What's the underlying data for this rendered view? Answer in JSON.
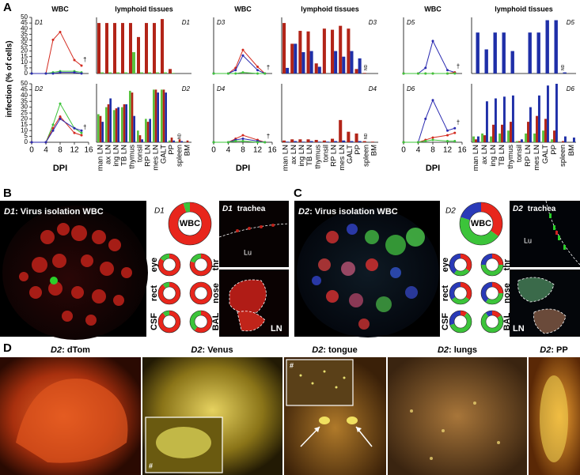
{
  "panel_labels": [
    "A",
    "B",
    "C",
    "D"
  ],
  "y_axis_label": "infection (% of cells)",
  "x_axis_label": "DPI",
  "chart_data": [
    {
      "type": "line",
      "title": "WBC",
      "label": "D1",
      "annotation": "†",
      "x": [
        0,
        4,
        6,
        8,
        12,
        14
      ],
      "xlim": [
        0,
        16
      ],
      "ylim": [
        0,
        50
      ],
      "yticks": [
        0,
        5,
        10,
        15,
        20,
        25,
        30,
        35,
        40,
        45,
        50
      ],
      "series": [
        {
          "color": "#d42a1f",
          "values": [
            0,
            0,
            30,
            37,
            12,
            7
          ]
        },
        {
          "color": "#3dc43a",
          "values": [
            0,
            0,
            1,
            2,
            2,
            1
          ]
        },
        {
          "color": "#2a2ab0",
          "values": [
            0,
            0,
            0,
            1,
            1,
            0
          ]
        }
      ]
    },
    {
      "type": "bar",
      "title": "lymphoid tissues",
      "label": "D1",
      "ylim": [
        0,
        100
      ],
      "series": [
        {
          "color": "#b22418",
          "values": [
            90,
            90,
            90,
            90,
            90,
            65,
            90,
            90,
            97,
            8,
            0,
            0
          ]
        },
        {
          "color": "#5ac23e",
          "values": [
            2,
            2,
            2,
            2,
            38,
            2,
            2,
            2,
            2,
            1,
            0,
            0
          ]
        }
      ]
    },
    {
      "type": "line",
      "title": "WBC",
      "label": "D3",
      "annotation": "†",
      "x": [
        0,
        4,
        6,
        8,
        12,
        14
      ],
      "xlim": [
        0,
        16
      ],
      "ylim": [
        0,
        50
      ],
      "series": [
        {
          "color": "#d42a1f",
          "values": [
            0,
            0,
            5,
            21,
            6,
            0
          ]
        },
        {
          "color": "#2a2ab0",
          "values": [
            0,
            0,
            3,
            16,
            3,
            0
          ]
        },
        {
          "color": "#3dc43a",
          "values": [
            0,
            0,
            0,
            1,
            0,
            0
          ]
        }
      ]
    },
    {
      "type": "bar",
      "title": "lymphoid tissues",
      "label": "D3",
      "note": "ND",
      "ylim": [
        0,
        100
      ],
      "series": [
        {
          "color": "#b22418",
          "values": [
            90,
            53,
            76,
            75,
            18,
            80,
            78,
            85,
            80,
            8,
            1,
            0
          ]
        },
        {
          "color": "#1f2fa8",
          "values": [
            10,
            53,
            38,
            40,
            12,
            0,
            40,
            30,
            40,
            27,
            0,
            0
          ]
        }
      ]
    },
    {
      "type": "line",
      "title": "WBC",
      "label": "D5",
      "annotation": "†",
      "x": [
        0,
        4,
        6,
        8,
        12,
        14
      ],
      "xlim": [
        0,
        16
      ],
      "ylim": [
        0,
        50
      ],
      "series": [
        {
          "color": "#2a2ab0",
          "values": [
            0,
            0,
            5,
            29,
            3,
            1
          ]
        },
        {
          "color": "#d42a1f",
          "values": [
            0,
            0,
            0,
            0,
            0,
            1
          ]
        },
        {
          "color": "#3dc43a",
          "values": [
            0,
            0,
            0,
            0,
            0,
            0
          ]
        }
      ]
    },
    {
      "type": "bar",
      "title": "lymphoid tissues",
      "label": "D5",
      "note": "ND",
      "ylim": [
        0,
        100
      ],
      "series": [
        {
          "color": "#b22418",
          "values": [
            0,
            0,
            0,
            0,
            0,
            0,
            0,
            0,
            0,
            0,
            0,
            0
          ]
        },
        {
          "color": "#1f2fa8",
          "values": [
            73,
            43,
            73,
            73,
            40,
            0,
            73,
            73,
            95,
            95,
            2,
            0
          ]
        }
      ]
    },
    {
      "type": "line",
      "label": "D2",
      "annotation": "†",
      "x": [
        0,
        4,
        6,
        8,
        12,
        14
      ],
      "xlim": [
        0,
        16
      ],
      "ylim": [
        0,
        50
      ],
      "xticks": [
        0,
        4,
        8,
        12,
        16
      ],
      "yticks": [
        0,
        5,
        10,
        15,
        20,
        25,
        30,
        35,
        40,
        45,
        50
      ],
      "series": [
        {
          "color": "#3dc43a",
          "values": [
            0,
            0,
            15,
            33,
            12,
            8
          ]
        },
        {
          "color": "#d42a1f",
          "values": [
            0,
            0,
            12,
            22,
            8,
            6
          ]
        },
        {
          "color": "#2a2ab0",
          "values": [
            0,
            0,
            10,
            20,
            12,
            10
          ]
        }
      ]
    },
    {
      "type": "bar",
      "label": "D2",
      "note": "ND",
      "ylim": [
        0,
        100
      ],
      "categories": [
        "man LN",
        "ax LN",
        "ing LN",
        "TB LN",
        "thymus",
        "tonsil",
        "RP LN",
        "mes LN",
        "GALT",
        "PP",
        "spleen",
        "BM"
      ],
      "series": [
        {
          "color": "#5ac23e",
          "values": [
            48,
            60,
            55,
            60,
            88,
            20,
            40,
            90,
            90,
            3,
            1,
            0
          ]
        },
        {
          "color": "#b22418",
          "values": [
            45,
            65,
            58,
            65,
            85,
            12,
            35,
            90,
            90,
            8,
            5,
            3
          ]
        },
        {
          "color": "#1f2fa8",
          "values": [
            35,
            75,
            60,
            65,
            45,
            5,
            40,
            85,
            85,
            3,
            2,
            0
          ]
        }
      ]
    },
    {
      "type": "line",
      "label": "D4",
      "annotation": "†",
      "x": [
        0,
        4,
        6,
        8,
        12,
        14
      ],
      "xlim": [
        0,
        16
      ],
      "ylim": [
        0,
        50
      ],
      "xticks": [
        0,
        4,
        8,
        12,
        16
      ],
      "series": [
        {
          "color": "#d42a1f",
          "values": [
            0,
            0,
            3,
            6,
            2,
            0
          ]
        },
        {
          "color": "#2a2ab0",
          "values": [
            0,
            0,
            2,
            3,
            1,
            0
          ]
        },
        {
          "color": "#3dc43a",
          "values": [
            0,
            0,
            1,
            1,
            0,
            0
          ]
        }
      ]
    },
    {
      "type": "bar",
      "label": "D4",
      "note": "ND",
      "ylim": [
        0,
        100
      ],
      "categories": [
        "man LN",
        "ax LN",
        "ing LN",
        "TB LN",
        "thymus",
        "tonsil",
        "RP LN",
        "mes LN",
        "GALT",
        "PP",
        "spleen",
        "BM"
      ],
      "series": [
        {
          "color": "#b22418",
          "values": [
            3,
            5,
            5,
            5,
            4,
            3,
            6,
            38,
            18,
            15,
            2,
            1
          ]
        },
        {
          "color": "#1f2fa8",
          "values": [
            1,
            2,
            1,
            2,
            1,
            1,
            2,
            3,
            2,
            2,
            0,
            0
          ]
        }
      ]
    },
    {
      "type": "line",
      "label": "D6",
      "annotation": "†",
      "x": [
        0,
        4,
        6,
        8,
        12,
        14
      ],
      "xlim": [
        0,
        16
      ],
      "ylim": [
        0,
        50
      ],
      "xticks": [
        0,
        4,
        8,
        12,
        16
      ],
      "series": [
        {
          "color": "#2a2ab0",
          "values": [
            0,
            0,
            20,
            36,
            10,
            12
          ]
        },
        {
          "color": "#d42a1f",
          "values": [
            0,
            0,
            2,
            4,
            6,
            8
          ]
        },
        {
          "color": "#3dc43a",
          "values": [
            0,
            0,
            1,
            2,
            1,
            1
          ]
        }
      ]
    },
    {
      "type": "bar",
      "label": "D6",
      "ylim": [
        0,
        100
      ],
      "categories": [
        "man LN",
        "ax LN",
        "ing LN",
        "TB LN",
        "thymus",
        "tonsil",
        "RP LN",
        "mes LN",
        "GALT",
        "PP",
        "spleen",
        "BM"
      ],
      "series": [
        {
          "color": "#5ac23e",
          "values": [
            10,
            15,
            10,
            15,
            20,
            2,
            15,
            15,
            20,
            5,
            0,
            0
          ]
        },
        {
          "color": "#b22418",
          "values": [
            5,
            12,
            30,
            30,
            35,
            2,
            35,
            45,
            40,
            20,
            2,
            0
          ]
        },
        {
          "color": "#1f2fa8",
          "values": [
            10,
            70,
            75,
            78,
            80,
            5,
            60,
            80,
            97,
            100,
            10,
            8
          ]
        }
      ]
    },
    {
      "type": "pie",
      "title": "WBC",
      "label": "D1",
      "values": [
        95,
        5,
        0
      ],
      "colors": [
        "#e8261c",
        "#3cc43a",
        "#2a3ab8"
      ]
    },
    {
      "type": "pie",
      "title": "eye",
      "values": [
        85,
        15,
        0
      ],
      "colors": [
        "#e8261c",
        "#3cc43a",
        "#2a3ab8"
      ]
    },
    {
      "type": "pie",
      "title": "thr",
      "values": [
        80,
        20,
        0
      ],
      "colors": [
        "#e8261c",
        "#3cc43a",
        "#2a3ab8"
      ]
    },
    {
      "type": "pie",
      "title": "rect",
      "values": [
        90,
        10,
        0
      ],
      "colors": [
        "#e8261c",
        "#3cc43a",
        "#2a3ab8"
      ]
    },
    {
      "type": "pie",
      "title": "nose",
      "values": [
        100,
        0,
        0
      ],
      "colors": [
        "#e8261c",
        "#3cc43a",
        "#2a3ab8"
      ]
    },
    {
      "type": "pie",
      "title": "CSF",
      "values": [
        90,
        10,
        0
      ],
      "colors": [
        "#e8261c",
        "#3cc43a",
        "#2a3ab8"
      ]
    },
    {
      "type": "pie",
      "title": "BAL",
      "values": [
        60,
        40,
        0
      ],
      "colors": [
        "#e8261c",
        "#3cc43a",
        "#2a3ab8"
      ]
    },
    {
      "type": "pie",
      "title": "WBC",
      "label": "D2",
      "values": [
        35,
        45,
        20
      ],
      "colors": [
        "#e8261c",
        "#3cc43a",
        "#2a3ab8"
      ]
    },
    {
      "type": "pie",
      "title": "eye",
      "values": [
        35,
        25,
        40
      ],
      "colors": [
        "#e8261c",
        "#3cc43a",
        "#2a3ab8"
      ]
    },
    {
      "type": "pie",
      "title": "thr",
      "values": [
        25,
        50,
        25
      ],
      "colors": [
        "#e8261c",
        "#3cc43a",
        "#2a3ab8"
      ]
    },
    {
      "type": "pie",
      "title": "rect",
      "values": [
        35,
        30,
        35
      ],
      "colors": [
        "#e8261c",
        "#3cc43a",
        "#2a3ab8"
      ]
    },
    {
      "type": "pie",
      "title": "nose",
      "values": [
        25,
        35,
        40
      ],
      "colors": [
        "#e8261c",
        "#3cc43a",
        "#2a3ab8"
      ]
    },
    {
      "type": "pie",
      "title": "CSF",
      "values": [
        10,
        60,
        30
      ],
      "colors": [
        "#e8261c",
        "#3cc43a",
        "#2a3ab8"
      ]
    },
    {
      "type": "pie",
      "title": "BAL",
      "values": [
        15,
        75,
        10
      ],
      "colors": [
        "#e8261c",
        "#3cc43a",
        "#2a3ab8"
      ]
    }
  ],
  "panel_b": {
    "title_prefix": "D1",
    "title": ": Virus isolation WBC",
    "trachea_prefix": "D1",
    "trachea": "trachea",
    "lumen": "Lu",
    "node": "LN"
  },
  "panel_c": {
    "title_prefix": "D2",
    "title": ": Virus isolation WBC",
    "trachea_prefix": "D2",
    "trachea": "trachea",
    "lumen": "Lu",
    "node": "LN"
  },
  "panel_d": {
    "photos": [
      {
        "prefix": "D2",
        "title": ": dTom"
      },
      {
        "prefix": "D2",
        "title": ": Venus"
      },
      {
        "prefix": "D2",
        "title": ": tongue"
      },
      {
        "prefix": "D2",
        "title": ": lungs"
      },
      {
        "prefix": "D2",
        "title": ": PP"
      }
    ],
    "inset_mark": "#"
  }
}
